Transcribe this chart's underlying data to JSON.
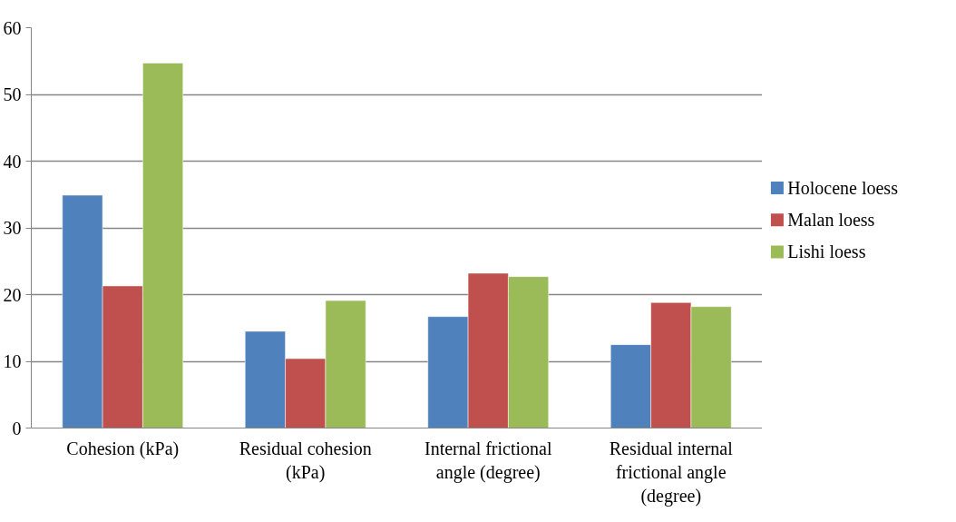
{
  "chart_data": {
    "type": "bar",
    "categories": [
      "Cohesion (kPa)",
      "Residual cohesion (kPa)",
      "Internal frictional angle (degree)",
      "Residual internal frictional angle (degree)"
    ],
    "series": [
      {
        "name": "Holocene loess",
        "color": "#4f81bd",
        "values": [
          34.9,
          14.5,
          16.7,
          12.5
        ]
      },
      {
        "name": "Malan loess",
        "color": "#c0504d",
        "values": [
          21.3,
          10.4,
          23.2,
          18.8
        ]
      },
      {
        "name": "Lishi loess",
        "color": "#9bbb59",
        "values": [
          54.7,
          19.1,
          22.7,
          18.2
        ]
      }
    ],
    "ylim": [
      0,
      60
    ],
    "yticks": [
      0,
      10,
      20,
      30,
      40,
      50,
      60
    ],
    "grid": "y",
    "legend": "right"
  }
}
